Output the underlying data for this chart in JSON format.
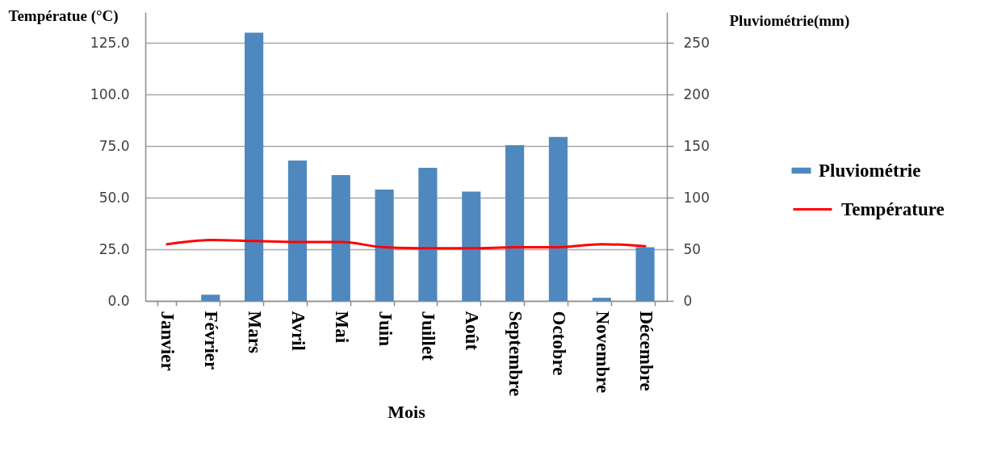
{
  "chart_data": {
    "type": "bar",
    "xlabel": "Mois",
    "ylabel": "Températue (°C)",
    "y2label": "Pluviométrie(mm)",
    "categories": [
      "Janvier",
      "Février",
      "Mars",
      "Avril",
      "Mai",
      "Juin",
      "Juillet",
      "Août",
      "Septembre",
      "Octobre",
      "Novembre",
      "Décembre"
    ],
    "series": [
      {
        "name": "Pluviométrie",
        "axis": "y2",
        "color": "#4f88be",
        "values": [
          0,
          6,
          260,
          136,
          122,
          108,
          129,
          106,
          151,
          159,
          3,
          52
        ]
      },
      {
        "name": "Température",
        "type": "line",
        "axis": "y",
        "color": "#ff0000",
        "values": [
          27.5,
          29.5,
          29,
          28.5,
          28.5,
          26,
          25.5,
          25.5,
          26,
          26,
          27.5,
          26.5
        ]
      }
    ],
    "ylim": [
      0,
      140
    ],
    "yticks": [
      {
        "value": 0,
        "label": "0.0"
      },
      {
        "value": 25,
        "label": "25.0"
      },
      {
        "value": 50,
        "label": "50.0"
      },
      {
        "value": 75,
        "label": "75.0"
      },
      {
        "value": 100,
        "label": "100.0"
      },
      {
        "value": 125,
        "label": "125.0"
      }
    ],
    "y2lim": [
      0,
      280
    ],
    "y2ticks": [
      0,
      50,
      100,
      150,
      200,
      250
    ],
    "grid": "y",
    "legend": "right"
  }
}
